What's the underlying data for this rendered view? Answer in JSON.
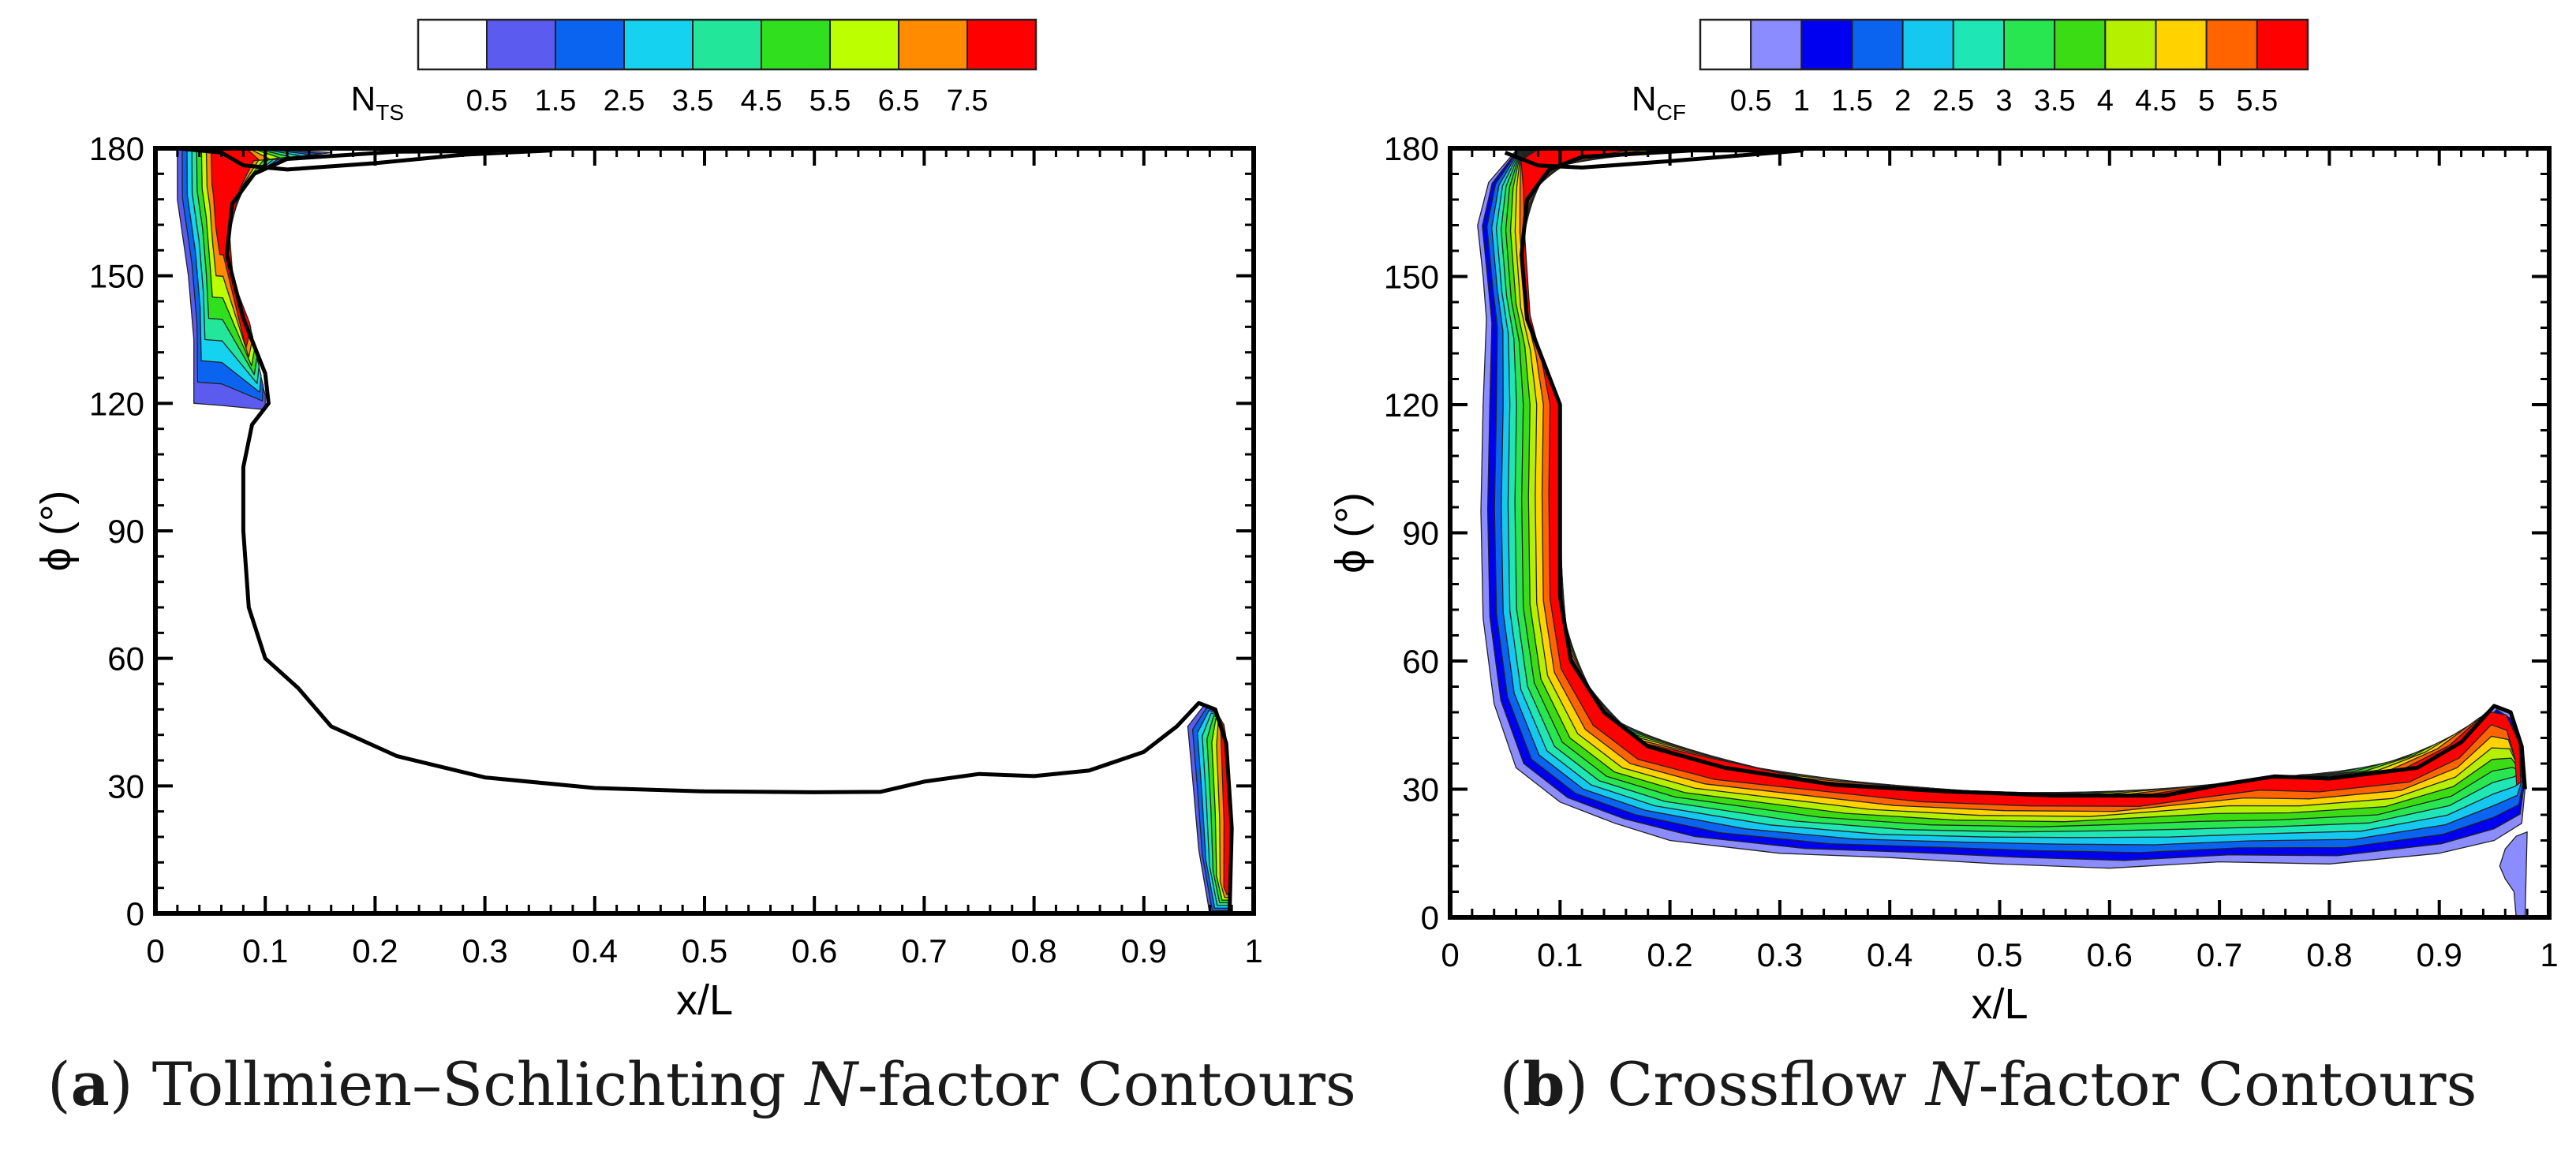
{
  "chart_data": [
    {
      "type": "contour",
      "panel_label": "a",
      "title": "Tollmien–Schlichting N-factor Contours",
      "caption_main": "Tollmien–Schlichting",
      "caption_italic": "N",
      "caption_suffix": "-factor Contours",
      "xlabel": "x/L",
      "ylabel": "ϕ (°)",
      "xlim": [
        0,
        1
      ],
      "ylim": [
        0,
        180
      ],
      "xticks": [
        "0",
        "0.1",
        "0.2",
        "0.3",
        "0.4",
        "0.5",
        "0.6",
        "0.7",
        "0.8",
        "0.9",
        "1"
      ],
      "yticks": [
        "0",
        "30",
        "60",
        "90",
        "120",
        "150",
        "180"
      ],
      "legend": {
        "var_main": "N",
        "var_sub": "TS",
        "levels": [
          "0.5",
          "1.5",
          "2.5",
          "3.5",
          "4.5",
          "5.5",
          "6.5",
          "7.5"
        ],
        "colors": [
          "#ffffff",
          "#5b5bef",
          "#0a64f0",
          "#14d2f0",
          "#22e69a",
          "#30e01e",
          "#bcff00",
          "#ff8c00",
          "#ff0000"
        ]
      },
      "neutral_curve": [
        [
          0.02,
          180
        ],
        [
          0.06,
          179
        ],
        [
          0.08,
          176
        ],
        [
          0.12,
          175
        ],
        [
          0.2,
          176.5
        ],
        [
          0.28,
          178.5
        ],
        [
          0.36,
          179.5
        ],
        [
          0.22,
          179.2
        ],
        [
          0.12,
          177.5
        ],
        [
          0.09,
          174
        ],
        [
          0.07,
          167
        ],
        [
          0.065,
          155
        ],
        [
          0.08,
          140
        ],
        [
          0.1,
          127
        ],
        [
          0.103,
          120
        ],
        [
          0.088,
          115
        ],
        [
          0.08,
          105
        ],
        [
          0.08,
          90
        ],
        [
          0.085,
          72
        ],
        [
          0.1,
          60
        ],
        [
          0.13,
          53
        ],
        [
          0.16,
          44
        ],
        [
          0.22,
          37
        ],
        [
          0.3,
          32
        ],
        [
          0.4,
          29.5
        ],
        [
          0.5,
          28.7
        ],
        [
          0.6,
          28.5
        ],
        [
          0.66,
          28.6
        ],
        [
          0.7,
          31
        ],
        [
          0.75,
          32.8
        ],
        [
          0.8,
          32.3
        ],
        [
          0.85,
          33.6
        ],
        [
          0.9,
          38
        ],
        [
          0.93,
          44
        ],
        [
          0.95,
          49.5
        ],
        [
          0.965,
          48
        ],
        [
          0.975,
          40
        ],
        [
          0.98,
          20
        ],
        [
          0.978,
          0
        ]
      ],
      "regions": [
        {
          "name": "leading-edge-tongue",
          "levels": [
            1,
            2,
            3,
            4,
            5,
            6,
            7,
            8
          ],
          "outer": [
            [
              0.02,
              180
            ],
            [
              0.02,
              168
            ],
            [
              0.03,
              150
            ],
            [
              0.035,
              135
            ],
            [
              0.035,
              120
            ],
            [
              0.06,
              119.5
            ],
            [
              0.1,
              118.5
            ],
            [
              0.1,
              122
            ],
            [
              0.09,
              132
            ],
            [
              0.075,
              142
            ],
            [
              0.065,
              155
            ],
            [
              0.07,
              167
            ],
            [
              0.09,
              174
            ],
            [
              0.12,
              177.5
            ],
            [
              0.16,
              179
            ],
            [
              0.1,
              180
            ]
          ],
          "inner": [
            [
              0.055,
              180
            ],
            [
              0.056,
              172
            ],
            [
              0.058,
              165
            ],
            [
              0.062,
              160
            ],
            [
              0.08,
              135
            ],
            [
              0.085,
              140
            ],
            [
              0.07,
              150
            ],
            [
              0.068,
              160
            ],
            [
              0.075,
              170
            ],
            [
              0.085,
              177
            ],
            [
              0.08,
              180
            ]
          ]
        },
        {
          "name": "trailing-edge-sliver",
          "levels": [
            1,
            2,
            3,
            4,
            5,
            6,
            7,
            8
          ],
          "outer": [
            [
              0.955,
              49
            ],
            [
              0.94,
              44
            ],
            [
              0.945,
              30
            ],
            [
              0.95,
              15
            ],
            [
              0.96,
              0
            ],
            [
              0.978,
              0
            ],
            [
              0.98,
              20
            ],
            [
              0.975,
              40
            ],
            [
              0.965,
              48
            ]
          ],
          "inner": [
            [
              0.972,
              44
            ],
            [
              0.975,
              38
            ],
            [
              0.977,
              20
            ],
            [
              0.976,
              5
            ],
            [
              0.978,
              5
            ],
            [
              0.979,
              20
            ],
            [
              0.977,
              38
            ],
            [
              0.974,
              44
            ]
          ]
        }
      ]
    },
    {
      "type": "contour",
      "panel_label": "b",
      "title": "Crossflow N-factor Contours",
      "caption_main": "Crossflow",
      "caption_italic": "N",
      "caption_suffix": "-factor Contours",
      "xlabel": "x/L",
      "ylabel": "ϕ (°)",
      "xlim": [
        0,
        1
      ],
      "ylim": [
        0,
        180
      ],
      "xticks": [
        "0",
        "0.1",
        "0.2",
        "0.3",
        "0.4",
        "0.5",
        "0.6",
        "0.7",
        "0.8",
        "0.9",
        "1"
      ],
      "yticks": [
        "0",
        "30",
        "60",
        "90",
        "120",
        "150",
        "180"
      ],
      "legend": {
        "var_main": "N",
        "var_sub": "CF",
        "levels": [
          "0.5",
          "1",
          "1.5",
          "2",
          "2.5",
          "3",
          "3.5",
          "4",
          "4.5",
          "5",
          "5.5"
        ],
        "colors": [
          "#ffffff",
          "#8a8cff",
          "#0000f0",
          "#0a64f0",
          "#14c8f0",
          "#1ee6b4",
          "#28e650",
          "#3cdc14",
          "#b4f000",
          "#ffd200",
          "#ff6400",
          "#ff0000"
        ]
      },
      "neutral_curve": [
        [
          0.05,
          179
        ],
        [
          0.08,
          176
        ],
        [
          0.12,
          175.5
        ],
        [
          0.2,
          177
        ],
        [
          0.32,
          179.5
        ],
        [
          0.22,
          179.5
        ],
        [
          0.12,
          178
        ],
        [
          0.09,
          175
        ],
        [
          0.07,
          168
        ],
        [
          0.065,
          155
        ],
        [
          0.07,
          140
        ],
        [
          0.085,
          130
        ],
        [
          0.1,
          120
        ],
        [
          0.1,
          100
        ],
        [
          0.1,
          75
        ],
        [
          0.11,
          60
        ],
        [
          0.14,
          48
        ],
        [
          0.18,
          40
        ],
        [
          0.25,
          35
        ],
        [
          0.35,
          31
        ],
        [
          0.45,
          29.5
        ],
        [
          0.55,
          28.5
        ],
        [
          0.65,
          28.5
        ],
        [
          0.7,
          31
        ],
        [
          0.75,
          33
        ],
        [
          0.8,
          32.5
        ],
        [
          0.88,
          35
        ],
        [
          0.92,
          41
        ],
        [
          0.95,
          49.5
        ],
        [
          0.965,
          48
        ],
        [
          0.975,
          40
        ],
        [
          0.978,
          30
        ]
      ],
      "regions": [
        {
          "name": "crossflow-band",
          "levels": [
            1,
            2,
            3,
            4,
            5,
            6,
            7,
            8,
            9,
            10,
            11
          ],
          "outer": [
            [
              0.1,
              180
            ],
            [
              0.06,
              179.5
            ],
            [
              0.035,
              172
            ],
            [
              0.025,
              162
            ],
            [
              0.03,
              150
            ],
            [
              0.033,
              140
            ],
            [
              0.03,
              120
            ],
            [
              0.028,
              95
            ],
            [
              0.03,
              70
            ],
            [
              0.04,
              50
            ],
            [
              0.06,
              35
            ],
            [
              0.1,
              27
            ],
            [
              0.15,
              22
            ],
            [
              0.2,
              18
            ],
            [
              0.3,
              15
            ],
            [
              0.4,
              14
            ],
            [
              0.5,
              12.5
            ],
            [
              0.6,
              11.5
            ],
            [
              0.7,
              13
            ],
            [
              0.8,
              12.5
            ],
            [
              0.9,
              15
            ],
            [
              0.95,
              18
            ],
            [
              0.975,
              22
            ],
            [
              0.978,
              30
            ],
            [
              0.975,
              40
            ],
            [
              0.965,
              48
            ],
            [
              0.95,
              49.5
            ],
            [
              0.92,
              41
            ],
            [
              0.88,
              35
            ],
            [
              0.8,
              32.5
            ],
            [
              0.75,
              33
            ],
            [
              0.7,
              31
            ],
            [
              0.65,
              28.5
            ],
            [
              0.55,
              28.5
            ],
            [
              0.45,
              29.5
            ],
            [
              0.35,
              31
            ],
            [
              0.25,
              35
            ],
            [
              0.18,
              40
            ],
            [
              0.14,
              48
            ],
            [
              0.11,
              60
            ],
            [
              0.1,
              75
            ],
            [
              0.1,
              100
            ],
            [
              0.1,
              120
            ],
            [
              0.085,
              130
            ],
            [
              0.07,
              140
            ],
            [
              0.065,
              155
            ],
            [
              0.07,
              168
            ],
            [
              0.09,
              175
            ],
            [
              0.12,
              178
            ],
            [
              0.22,
              179.5
            ],
            [
              0.32,
              180
            ]
          ],
          "inner": [
            [
              0.08,
              180
            ],
            [
              0.065,
              177
            ],
            [
              0.07,
              170
            ],
            [
              0.072,
              160
            ],
            [
              0.077,
              140
            ],
            [
              0.088,
              130
            ],
            [
              0.097,
              120
            ],
            [
              0.096,
              100
            ],
            [
              0.097,
              75
            ],
            [
              0.107,
              59
            ],
            [
              0.137,
              46
            ],
            [
              0.178,
              38
            ],
            [
              0.25,
              33.3
            ],
            [
              0.35,
              29.5
            ],
            [
              0.45,
              28
            ],
            [
              0.55,
              27.2
            ],
            [
              0.65,
              27.2
            ],
            [
              0.7,
              29.5
            ],
            [
              0.75,
              31.6
            ],
            [
              0.8,
              31
            ],
            [
              0.88,
              33.6
            ],
            [
              0.92,
              39.5
            ],
            [
              0.947,
              47.8
            ],
            [
              0.96,
              46
            ],
            [
              0.968,
              38
            ],
            [
              0.97,
              30
            ],
            [
              0.975,
              30
            ],
            [
              0.975,
              40
            ],
            [
              0.965,
              48
            ],
            [
              0.95,
              49.5
            ],
            [
              0.92,
              41
            ],
            [
              0.88,
              35
            ],
            [
              0.8,
              32.5
            ],
            [
              0.75,
              33
            ],
            [
              0.7,
              31
            ],
            [
              0.65,
              28.5
            ],
            [
              0.55,
              28.5
            ],
            [
              0.45,
              29.5
            ],
            [
              0.35,
              31
            ],
            [
              0.25,
              35
            ],
            [
              0.18,
              40
            ],
            [
              0.14,
              48
            ],
            [
              0.11,
              60
            ],
            [
              0.1,
              75
            ],
            [
              0.1,
              100
            ],
            [
              0.1,
              120
            ],
            [
              0.085,
              130
            ],
            [
              0.07,
              140
            ],
            [
              0.065,
              155
            ],
            [
              0.07,
              168
            ],
            [
              0.09,
              175
            ],
            [
              0.12,
              178
            ],
            [
              0.16,
              180
            ]
          ]
        },
        {
          "name": "trailing-edge-spot",
          "levels": [
            1
          ],
          "outer": [
            [
              0.97,
              19
            ],
            [
              0.96,
              16
            ],
            [
              0.955,
              12
            ],
            [
              0.96,
              9
            ],
            [
              0.968,
              6
            ],
            [
              0.97,
              0
            ],
            [
              0.978,
              0
            ],
            [
              0.98,
              20
            ]
          ],
          "inner": []
        }
      ]
    }
  ]
}
